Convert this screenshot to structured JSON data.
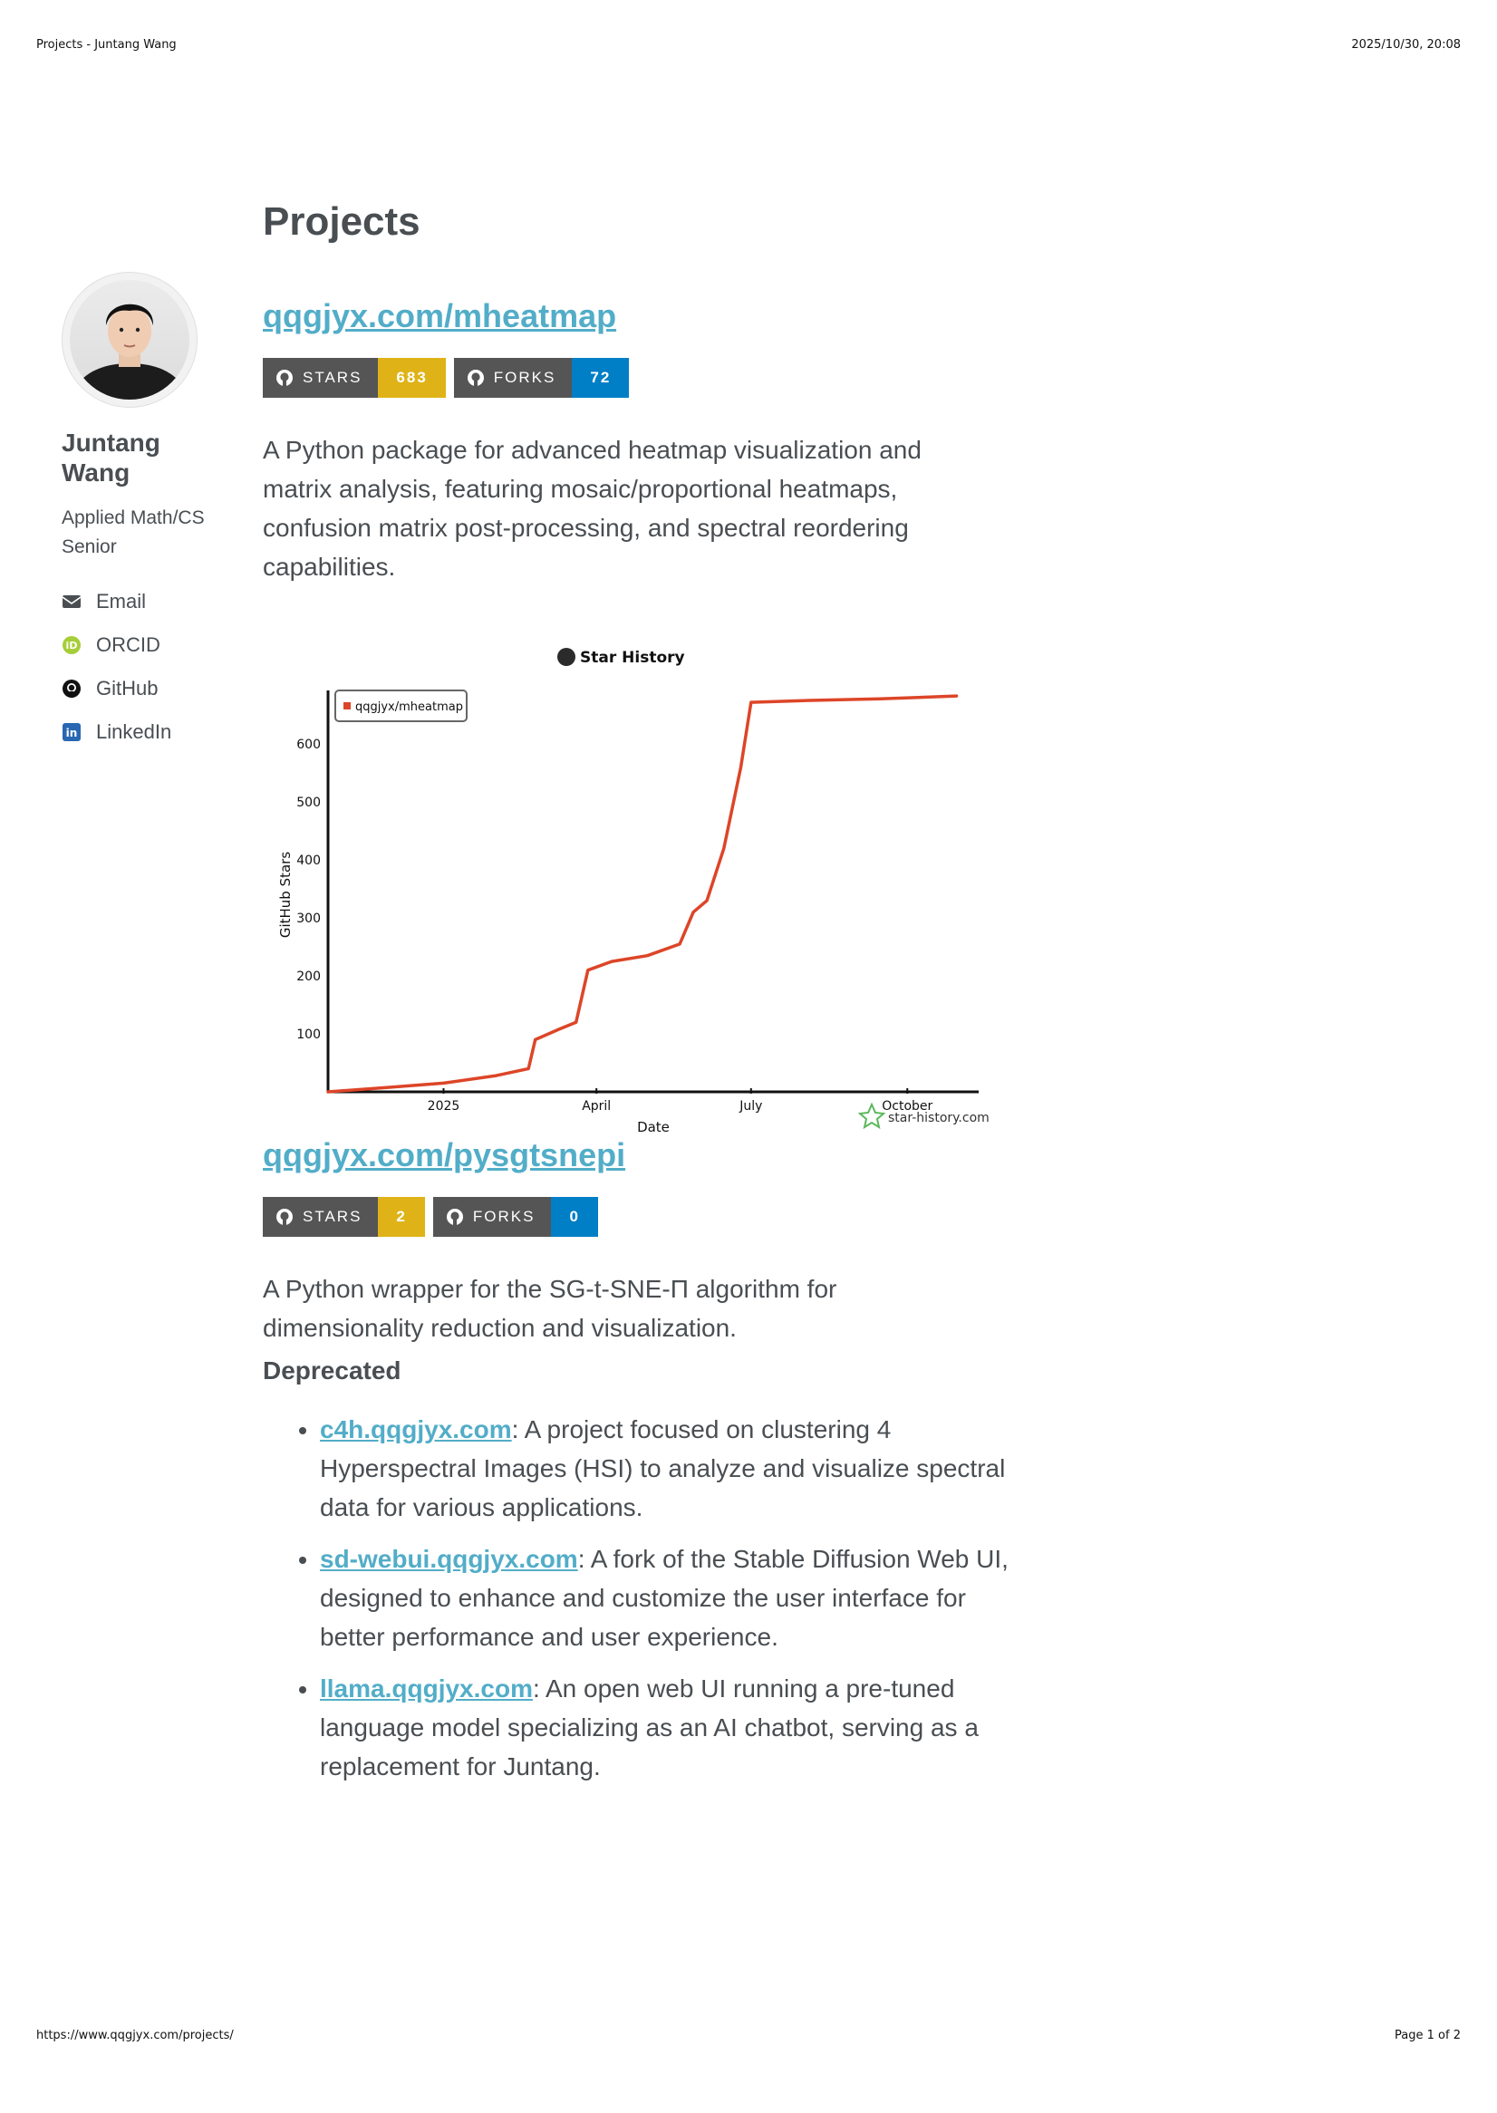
{
  "print_header": {
    "title": "Projects - Juntang Wang",
    "timestamp": "2025/10/30, 20:08"
  },
  "print_footer": {
    "url": "https://www.qqgjyx.com/projects/",
    "page": "Page 1 of 2"
  },
  "sidebar": {
    "name": "Juntang Wang",
    "bio": "Applied Math/CS Senior",
    "links": [
      {
        "label": "Email",
        "icon": "envelope-icon"
      },
      {
        "label": "ORCID",
        "icon": "orcid-icon"
      },
      {
        "label": "GitHub",
        "icon": "github-icon"
      },
      {
        "label": "LinkedIn",
        "icon": "linkedin-icon"
      }
    ]
  },
  "colors": {
    "link": "#52adc8",
    "stars_badge": "#dfb317",
    "forks_badge": "#007ec6",
    "badge_label": "#555555",
    "chart_line": "#dd4528",
    "text": "#494e52"
  },
  "main": {
    "page_title": "Projects",
    "projects": [
      {
        "link": "qqgjyx.com/mheatmap",
        "stars_label": "STARS",
        "stars": "683",
        "forks_label": "FORKS",
        "forks": "72",
        "description": "A Python package for advanced heatmap visualization and matrix analysis, featuring mosaic/proportional heatmaps, confusion matrix post-processing, and spectral reordering capabilities."
      },
      {
        "link": "qqgjyx.com/pysgtsnepi",
        "stars_label": "STARS",
        "stars": "2",
        "forks_label": "FORKS",
        "forks": "0",
        "description": "A Python wrapper for the SG-t-SNE-Π algorithm for dimensionality reduction and visualization."
      }
    ],
    "deprecated_heading": "Deprecated",
    "deprecated": [
      {
        "link": "c4h.qqgjyx.com",
        "text": ": A project focused on clustering 4 Hyperspectral Images (HSI) to analyze and visualize spectral data for various applications."
      },
      {
        "link": "sd-webui.qqgjyx.com",
        "text": ": A fork of the Stable Diffusion Web UI, designed to enhance and customize the user interface for better performance and user experience."
      },
      {
        "link": "llama.qqgjyx.com",
        "text": ": An open web UI running a pre-tuned language model specializing as an AI chatbot, serving as a replacement for Juntang."
      }
    ]
  },
  "chart_data": {
    "type": "line",
    "title": "Star History",
    "xlabel": "Date",
    "ylabel": "GitHub Stars",
    "watermark": "star-history.com",
    "legend": [
      "qqgjyx/mheatmap"
    ],
    "legend_position": "top-left",
    "x_ticks": [
      "2025",
      "April",
      "July",
      "October"
    ],
    "y_ticks": [
      100,
      200,
      300,
      400,
      500,
      600
    ],
    "ylim": [
      0,
      680
    ],
    "series": [
      {
        "name": "qqgjyx/mheatmap",
        "points": [
          [
            "2024-10-25",
            0
          ],
          [
            "2024-12-01",
            8
          ],
          [
            "2025-01-01",
            15
          ],
          [
            "2025-02-01",
            28
          ],
          [
            "2025-02-20",
            40
          ],
          [
            "2025-02-24",
            90
          ],
          [
            "2025-03-10",
            108
          ],
          [
            "2025-03-20",
            120
          ],
          [
            "2025-03-27",
            210
          ],
          [
            "2025-04-10",
            225
          ],
          [
            "2025-05-01",
            235
          ],
          [
            "2025-05-20",
            255
          ],
          [
            "2025-05-28",
            310
          ],
          [
            "2025-06-05",
            330
          ],
          [
            "2025-06-15",
            420
          ],
          [
            "2025-06-25",
            560
          ],
          [
            "2025-07-01",
            672
          ],
          [
            "2025-08-01",
            675
          ],
          [
            "2025-09-15",
            678
          ],
          [
            "2025-10-30",
            683
          ]
        ]
      }
    ]
  }
}
